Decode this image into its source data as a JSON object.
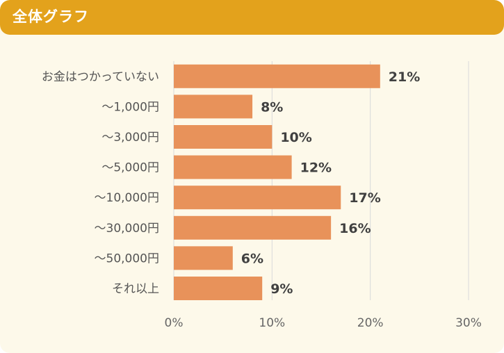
{
  "header": {
    "title": "全体グラフ"
  },
  "colors": {
    "header": "#e3a21c",
    "bar": "#e8925a",
    "background": "#fdf9ea",
    "grid": "#d9d9d9"
  },
  "chart_data": {
    "type": "bar",
    "orientation": "horizontal",
    "categories": [
      "お金はつかっていない",
      "～1,000円",
      "～3,000円",
      "～5,000円",
      "～10,000円",
      "～30,000円",
      "～50,000円",
      "それ以上"
    ],
    "values": [
      21,
      8,
      10,
      12,
      17,
      16,
      6,
      9
    ],
    "value_labels": [
      "21%",
      "8%",
      "10%",
      "12%",
      "17%",
      "16%",
      "6%",
      "9%"
    ],
    "xlim": [
      0,
      30
    ],
    "xticks": [
      0,
      10,
      20,
      30
    ],
    "xtick_labels": [
      "0%",
      "10%",
      "20%",
      "30%"
    ],
    "grid": true,
    "legend": "none"
  }
}
